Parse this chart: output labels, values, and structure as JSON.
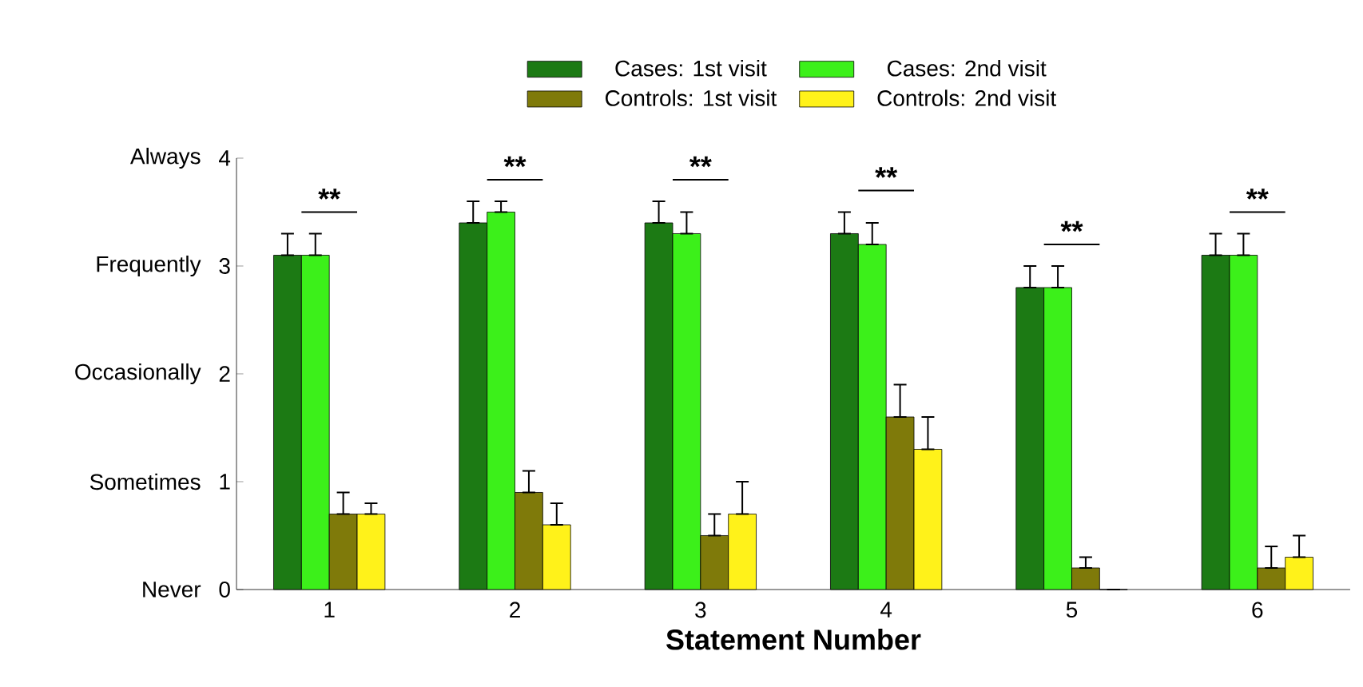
{
  "chart_data": {
    "type": "bar",
    "categories": [
      "1",
      "2",
      "3",
      "4",
      "5",
      "6"
    ],
    "series": [
      {
        "name": "Cases: 1st visit",
        "color": "#1c7a14",
        "values": [
          3.1,
          3.4,
          3.4,
          3.3,
          2.8,
          3.1
        ],
        "errors": [
          [
            3.1,
            3.3
          ],
          [
            3.4,
            3.6
          ],
          [
            3.4,
            3.6
          ],
          [
            3.3,
            3.5
          ],
          [
            2.8,
            3.0
          ],
          [
            3.1,
            3.3
          ]
        ]
      },
      {
        "name": "Cases: 2nd visit",
        "color": "#3cf01a",
        "values": [
          3.1,
          3.5,
          3.3,
          3.2,
          2.8,
          3.1
        ],
        "errors": [
          [
            3.1,
            3.3
          ],
          [
            3.5,
            3.6
          ],
          [
            3.3,
            3.5
          ],
          [
            3.2,
            3.4
          ],
          [
            2.8,
            3.0
          ],
          [
            3.1,
            3.3
          ]
        ]
      },
      {
        "name": "Controls: 1st visit",
        "color": "#7f7a0a",
        "values": [
          0.7,
          0.9,
          0.5,
          1.6,
          0.2,
          0.2
        ],
        "errors": [
          [
            0.7,
            0.9
          ],
          [
            0.9,
            1.1
          ],
          [
            0.5,
            0.7
          ],
          [
            1.6,
            1.9
          ],
          [
            0.2,
            0.3
          ],
          [
            0.2,
            0.4
          ]
        ]
      },
      {
        "name": "Controls: 2nd visit",
        "color": "#fff21a",
        "values": [
          0.7,
          0.6,
          0.7,
          1.3,
          0,
          0.3
        ],
        "errors": [
          [
            0.7,
            0.8
          ],
          [
            0.6,
            0.8
          ],
          [
            0.7,
            1.0
          ],
          [
            1.3,
            1.6
          ],
          null,
          [
            0.3,
            0.5
          ]
        ]
      }
    ],
    "xlabel": "Statement Number",
    "ylim": [
      0,
      4
    ],
    "yticks": [
      0,
      1,
      2,
      3,
      4
    ],
    "annotations": [
      "Never",
      "Sometimes",
      "Occasionally",
      "Frequently",
      "Always",
      "**",
      "**",
      "**",
      "**",
      "**",
      "**"
    ],
    "legend": "top",
    "grid": false
  }
}
